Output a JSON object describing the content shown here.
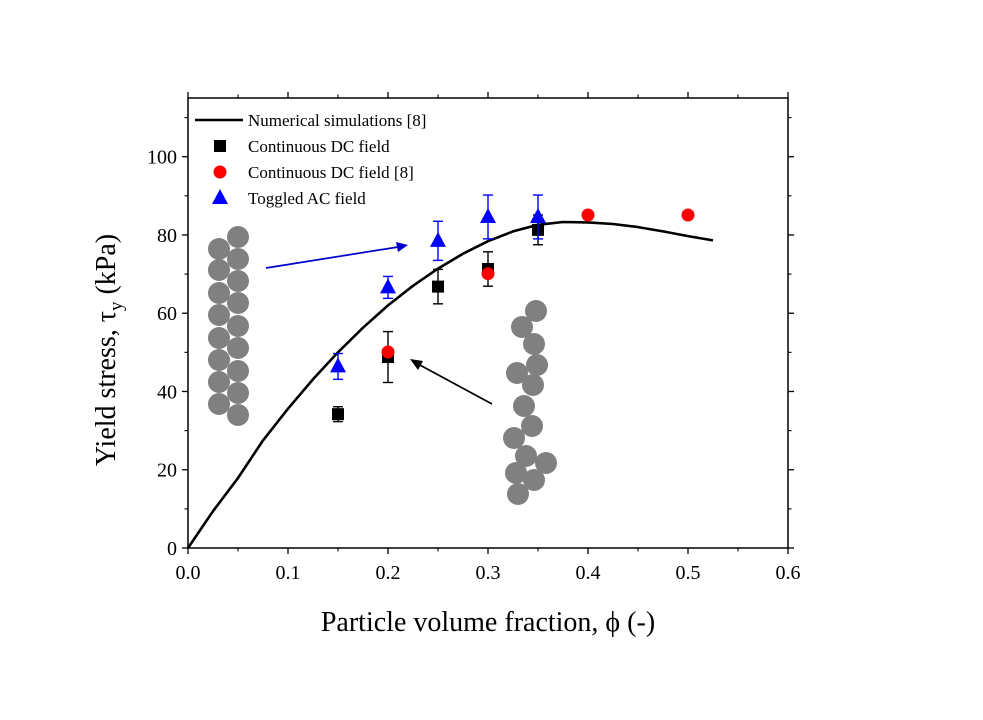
{
  "chart_data": {
    "type": "scatter",
    "xlabel": "Particle volume fraction, ϕ (-)",
    "ylabel_main": "Yield stress, τ",
    "ylabel_sub": "y",
    "ylabel_unit": " (kPa)",
    "xlim": [
      0.0,
      0.6
    ],
    "ylim": [
      0,
      115
    ],
    "xticks": [
      "0.0",
      "0.1",
      "0.2",
      "0.3",
      "0.4",
      "0.5",
      "0.6"
    ],
    "yticks": [
      "0",
      "20",
      "40",
      "60",
      "80",
      "100"
    ],
    "grid": false,
    "legend_position": "top-left",
    "series": [
      {
        "name": "Numerical simulations [8]",
        "kind": "line",
        "color": "#000000",
        "x": [
          0.0,
          0.025,
          0.05,
          0.075,
          0.1,
          0.125,
          0.15,
          0.175,
          0.2,
          0.225,
          0.25,
          0.275,
          0.3,
          0.325,
          0.35,
          0.375,
          0.4,
          0.425,
          0.45,
          0.475,
          0.5,
          0.525
        ],
        "y": [
          0,
          9.4,
          17.9,
          27.5,
          35.6,
          43.1,
          50.0,
          56.3,
          62.0,
          67.0,
          71.4,
          75.2,
          78.4,
          80.9,
          82.6,
          83.3,
          83.2,
          82.8,
          82.0,
          80.9,
          79.7,
          78.6
        ]
      },
      {
        "name": "Continuous DC field",
        "kind": "square",
        "color": "#000000",
        "x": [
          0.15,
          0.2,
          0.25,
          0.3,
          0.35
        ],
        "y": [
          34.2,
          48.8,
          66.8,
          71.3,
          81.3
        ],
        "err": [
          1.9,
          6.5,
          4.4,
          4.4,
          3.8
        ]
      },
      {
        "name": "Continuous DC field [8]",
        "kind": "circle",
        "color": "#ff0000",
        "x": [
          0.2,
          0.3,
          0.4,
          0.5
        ],
        "y": [
          50.1,
          70.1,
          85.1,
          85.1
        ]
      },
      {
        "name": "Toggled AC field",
        "kind": "triangle",
        "color": "#0000ff",
        "x": [
          0.15,
          0.2,
          0.25,
          0.3,
          0.35
        ],
        "y": [
          46.4,
          66.6,
          78.5,
          84.6,
          84.6
        ],
        "err": [
          3.3,
          2.8,
          5.0,
          5.6,
          5.6
        ]
      }
    ],
    "annotations": {
      "blue_arrow_color": "#0000cc",
      "black_arrow_color": "#000000",
      "particle_color": "#808080"
    }
  }
}
